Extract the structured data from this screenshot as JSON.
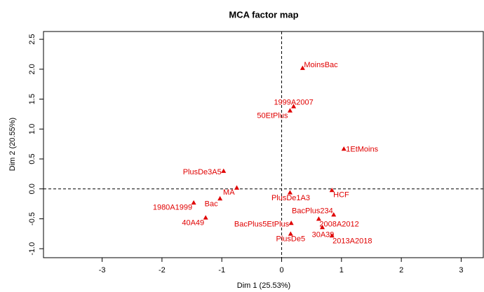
{
  "chart_data": {
    "type": "scatter",
    "title": "MCA factor map",
    "x_label": "Dim 1 (25.53%)",
    "y_label": "Dim 2 (20.55%)",
    "color": "#e00000",
    "labels": [
      "MoinsBac",
      "1999A2007",
      "50EtPlus",
      "1EtMoins",
      "PlusDe3A5",
      "MA",
      "Bac",
      "1980A1999",
      "40A49",
      "PlusDe1A3",
      "HCF",
      "BacPlus234",
      "2008A2012",
      "BacPlus5EtPlus",
      "30A39",
      "PlusDe5",
      "2013A2018"
    ],
    "x": [
      0.35,
      0.2,
      0.14,
      1.04,
      -0.97,
      -0.75,
      -1.03,
      -1.47,
      -1.27,
      0.14,
      0.84,
      0.87,
      0.62,
      0.16,
      0.68,
      0.15,
      0.84
    ],
    "y": [
      2.02,
      1.38,
      1.31,
      0.67,
      0.3,
      0.02,
      -0.16,
      -0.23,
      -0.48,
      -0.06,
      -0.02,
      -0.43,
      -0.5,
      -0.57,
      -0.64,
      -0.75,
      -0.78
    ],
    "xlim": [
      -3.98,
      3.37
    ],
    "ylim": [
      -1.15,
      2.63
    ],
    "xticks": [
      -3,
      -2,
      -1,
      0,
      1,
      2,
      3
    ],
    "yticks": [
      {
        "value": -1,
        "label": "-1.0"
      },
      -0.5,
      {
        "value": 0,
        "label": "0.0"
      },
      0.5,
      {
        "value": 1,
        "label": "1.0"
      },
      1.5,
      {
        "value": 2,
        "label": "2.0"
      },
      2.5
    ]
  }
}
